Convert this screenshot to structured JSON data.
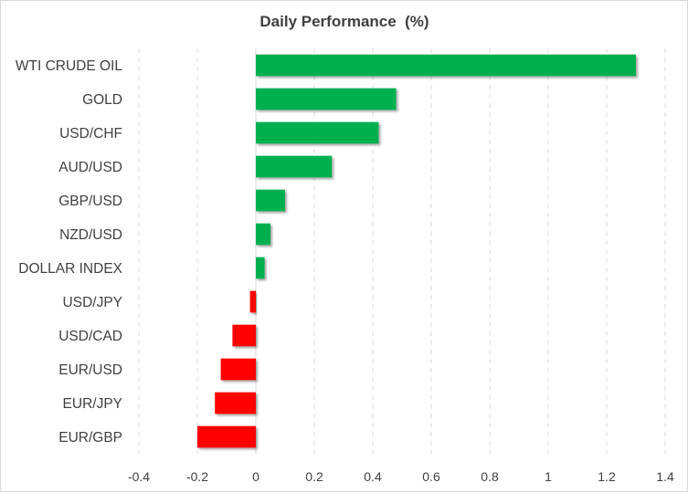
{
  "chart_data": {
    "type": "bar",
    "orientation": "horizontal",
    "title": "Daily Performance  (%)",
    "xlabel": "",
    "ylabel": "",
    "categories": [
      "WTI CRUDE OIL",
      "GOLD",
      "USD/CHF",
      "AUD/USD",
      "GBP/USD",
      "NZD/USD",
      "DOLLAR INDEX",
      "USD/JPY",
      "USD/CAD",
      "EUR/USD",
      "EUR/JPY",
      "EUR/GBP"
    ],
    "values": [
      1.3,
      0.48,
      0.42,
      0.26,
      0.1,
      0.05,
      0.03,
      -0.02,
      -0.08,
      -0.12,
      -0.14,
      -0.2
    ],
    "xlim": [
      -0.4,
      1.4
    ],
    "xticks": [
      -0.4,
      -0.2,
      0,
      0.2,
      0.4,
      0.6,
      0.8,
      1,
      1.2,
      1.4
    ],
    "xtick_labels": [
      "-0.4",
      "-0.2",
      "0",
      "0.2",
      "0.4",
      "0.6",
      "0.8",
      "1",
      "1.2",
      "1.4"
    ],
    "grid": true,
    "legend": "none",
    "colors": {
      "positive": "#00b050",
      "negative": "#ff0000",
      "text": "#404040",
      "grid": "#d9d9d9"
    }
  }
}
